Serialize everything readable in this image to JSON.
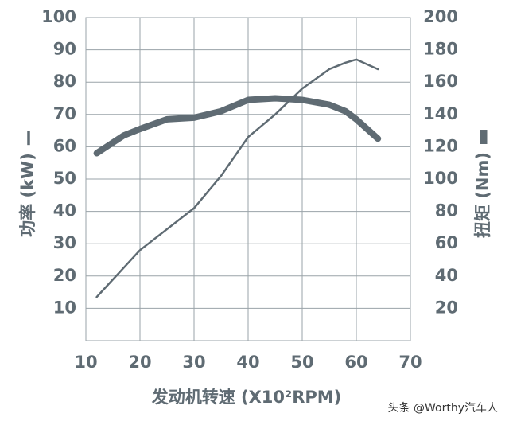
{
  "chart_data": {
    "type": "line",
    "x_label": "发动机转速 (X10²RPM)",
    "watermark": "头条 @Worthy汽车人",
    "xlim": [
      10,
      70
    ],
    "xticks": [
      10,
      20,
      30,
      40,
      50,
      60,
      70
    ],
    "ylim": [
      0,
      100
    ],
    "yticks": [
      10,
      20,
      30,
      40,
      50,
      60,
      70,
      80,
      90,
      100
    ],
    "y2lim": [
      0,
      200
    ],
    "y2ticks": [
      20,
      40,
      60,
      80,
      100,
      120,
      140,
      160,
      180,
      200
    ],
    "grid": true,
    "series": [
      {
        "name": "功率 (kW)",
        "color": "#5f6b73",
        "width": 2.5,
        "x": [
          12,
          20,
          30,
          35,
          40,
          45,
          50,
          55,
          58,
          60,
          64
        ],
        "values": [
          13.5,
          28,
          41,
          51,
          63,
          70,
          78,
          84,
          86,
          87,
          84
        ]
      },
      {
        "name": "扭矩 (Nm)",
        "color": "#5f6b73",
        "width": 8,
        "axis": "y2",
        "x": [
          12,
          17,
          20,
          25,
          30,
          35,
          40,
          45,
          50,
          55,
          58,
          60,
          64
        ],
        "values": [
          116,
          127,
          131,
          137,
          138,
          142,
          149,
          150,
          149,
          146,
          142,
          137,
          125
        ]
      }
    ]
  }
}
